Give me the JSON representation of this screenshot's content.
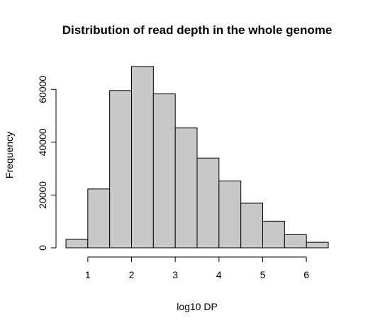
{
  "chart_data": {
    "type": "histogram",
    "title": "Distribution of read depth in the whole genome",
    "xlabel": "log10 DP",
    "ylabel": "Frequency",
    "bins": [
      {
        "start": 0.5,
        "end": 1.0,
        "count": 3200
      },
      {
        "start": 1.0,
        "end": 1.5,
        "count": 22300
      },
      {
        "start": 1.5,
        "end": 2.0,
        "count": 59600
      },
      {
        "start": 2.0,
        "end": 2.5,
        "count": 68700
      },
      {
        "start": 2.5,
        "end": 3.0,
        "count": 58300
      },
      {
        "start": 3.0,
        "end": 3.5,
        "count": 45400
      },
      {
        "start": 3.5,
        "end": 4.0,
        "count": 34000
      },
      {
        "start": 4.0,
        "end": 4.5,
        "count": 25300
      },
      {
        "start": 4.5,
        "end": 5.0,
        "count": 16900
      },
      {
        "start": 5.0,
        "end": 5.5,
        "count": 10100
      },
      {
        "start": 5.5,
        "end": 6.0,
        "count": 5000
      },
      {
        "start": 6.0,
        "end": 6.5,
        "count": 2100
      }
    ],
    "xticks": [
      1,
      2,
      3,
      4,
      5,
      6
    ],
    "xtick_labels": [
      "1",
      "2",
      "3",
      "4",
      "5",
      "6"
    ],
    "yticks": [
      0,
      20000,
      40000,
      60000
    ],
    "ytick_labels": [
      "0",
      "20000",
      "40000",
      "60000"
    ],
    "xlim": [
      0.5,
      6.5
    ],
    "ylim": [
      0,
      70000
    ],
    "grid": false,
    "legend": "none",
    "colors": {
      "bar_fill": "#c8c8c8",
      "bar_stroke": "#000000"
    }
  }
}
